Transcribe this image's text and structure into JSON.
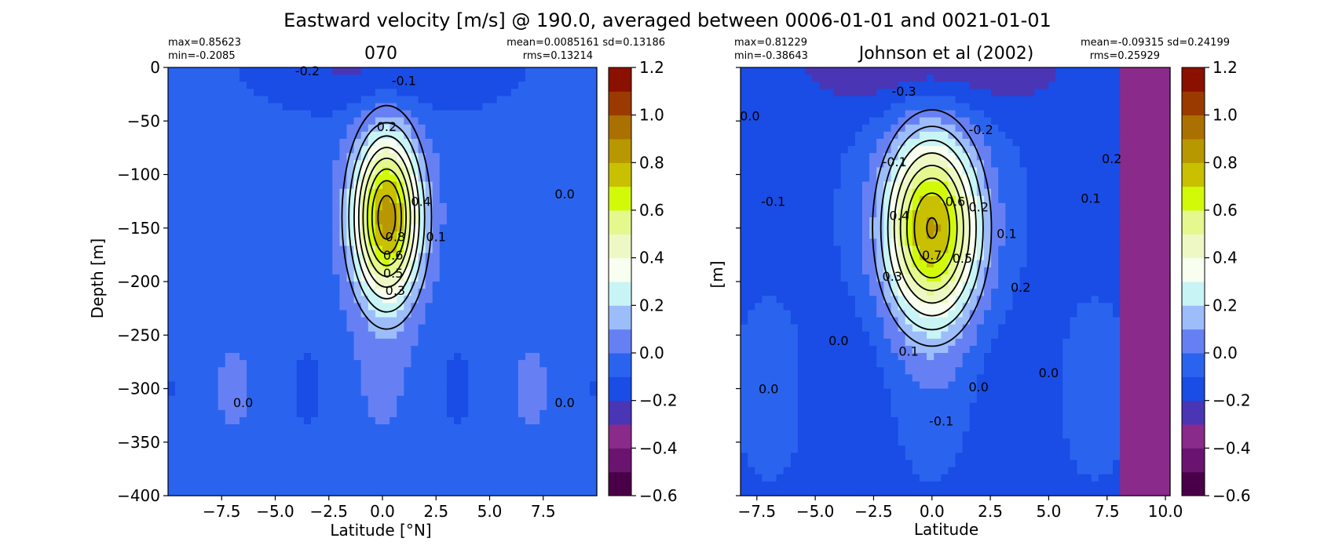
{
  "figure": {
    "suptitle": "Eastward velocity [m/s] @ 190.0, averaged between 0006-01-01 and 0021-01-01"
  },
  "colors": {
    "levels": [
      -0.6,
      -0.5,
      -0.4,
      -0.3,
      -0.2,
      -0.1,
      0.0,
      0.1,
      0.2,
      0.3,
      0.4,
      0.5,
      0.6,
      0.7,
      0.8,
      0.9,
      1.0,
      1.1,
      1.2
    ],
    "palette": [
      "#4a0048",
      "#6a1470",
      "#8a2a8a",
      "#4a35b4",
      "#1a4ce6",
      "#2a64ee",
      "#6680f4",
      "#9cbcfa",
      "#c8f4f6",
      "#f8fff0",
      "#eef8c4",
      "#e4f88e",
      "#d2fa08",
      "#c8c000",
      "#b89800",
      "#aa7000",
      "#9a3a00",
      "#8a1000",
      "#6a0000"
    ]
  },
  "chart_data": [
    {
      "type": "heatmap",
      "title": "070",
      "stats_left": [
        "max=0.85623",
        "min=-0.2085"
      ],
      "stats_right": [
        "mean=0.0085161 sd=0.13186",
        "rms=0.13214"
      ],
      "xlabel": "Latitude [°N]",
      "ylabel": "Depth [m]",
      "xlim": [
        -10,
        10
      ],
      "ylim": [
        -400,
        0
      ],
      "xticks": [
        -7.5,
        -5.0,
        -2.5,
        0.0,
        2.5,
        5.0,
        7.5
      ],
      "xtick_labels": [
        "−7.5",
        "−5.0",
        "−2.5",
        "0.0",
        "2.5",
        "5.0",
        "7.5"
      ],
      "yticks": [
        0,
        -50,
        -100,
        -150,
        -200,
        -250,
        -300,
        -350,
        -400
      ],
      "ytick_labels": [
        "0",
        "−50",
        "−100",
        "−150",
        "−200",
        "−250",
        "−300",
        "−350",
        "−400"
      ],
      "core": {
        "lat": 0.2,
        "depth": -140,
        "max": 0.86
      },
      "undercurrent_sd": {
        "lat": 1.1,
        "depth": 55
      },
      "background": -0.05,
      "contour_labels": [
        {
          "text": "-0.2",
          "lat": -3.5,
          "depth": -3
        },
        {
          "text": "-0.1",
          "lat": 1.0,
          "depth": -12
        },
        {
          "text": "0.2",
          "lat": 0.2,
          "depth": -55
        },
        {
          "text": "0.4",
          "lat": 1.8,
          "depth": -125
        },
        {
          "text": "0.1",
          "lat": 2.5,
          "depth": -158
        },
        {
          "text": "0.8",
          "lat": 0.6,
          "depth": -158
        },
        {
          "text": "0.6",
          "lat": 0.5,
          "depth": -175
        },
        {
          "text": "0.5",
          "lat": 0.5,
          "depth": -192
        },
        {
          "text": "0.3",
          "lat": 0.6,
          "depth": -208
        },
        {
          "text": "0.0",
          "lat": 8.5,
          "depth": -118
        },
        {
          "text": "0.0",
          "lat": -6.5,
          "depth": -313
        },
        {
          "text": "0.0",
          "lat": 8.5,
          "depth": -313
        }
      ]
    },
    {
      "type": "heatmap",
      "title": "Johnson et al (2002)",
      "stats_left": [
        "max=0.81229",
        "min=-0.38643"
      ],
      "stats_right": [
        "mean=-0.09315 sd=0.24199",
        "rms=0.25929"
      ],
      "xlabel": "Latitude",
      "ylabel": "[m]",
      "xlim": [
        -8.2,
        10.2
      ],
      "ylim": [
        -400,
        0
      ],
      "xticks": [
        -7.5,
        -5.0,
        -2.5,
        0.0,
        2.5,
        5.0,
        7.5,
        10.0
      ],
      "xtick_labels": [
        "−7.5",
        "−5.0",
        "−2.5",
        "0.0",
        "2.5",
        "5.0",
        "7.5",
        "10.0"
      ],
      "yticks": [
        0,
        -50,
        -100,
        -150,
        -200,
        -250,
        -300,
        -350,
        -400
      ],
      "core": {
        "lat": 0.0,
        "depth": -150,
        "max": 0.81
      },
      "undercurrent_sd": {
        "lat": 1.5,
        "depth": 65
      },
      "background": -0.12,
      "masked_from_lat": 8.0,
      "contour_labels": [
        {
          "text": "0.0",
          "lat": -7.8,
          "depth": -45
        },
        {
          "text": "-0.3",
          "lat": -1.2,
          "depth": -22
        },
        {
          "text": "-0.2",
          "lat": 2.1,
          "depth": -58
        },
        {
          "text": "-0.1",
          "lat": -1.6,
          "depth": -88
        },
        {
          "text": "0.2",
          "lat": 7.7,
          "depth": -85
        },
        {
          "text": "0.1",
          "lat": 6.8,
          "depth": -122
        },
        {
          "text": "-0.1",
          "lat": -6.8,
          "depth": -125
        },
        {
          "text": "0.6",
          "lat": 1.0,
          "depth": -125
        },
        {
          "text": "0.2",
          "lat": 2.0,
          "depth": -130
        },
        {
          "text": "0.4",
          "lat": -1.4,
          "depth": -138
        },
        {
          "text": "0.1",
          "lat": 3.2,
          "depth": -155
        },
        {
          "text": "0.7",
          "lat": 0.0,
          "depth": -175
        },
        {
          "text": "0.5",
          "lat": 1.3,
          "depth": -178
        },
        {
          "text": "0.3",
          "lat": -1.7,
          "depth": -195
        },
        {
          "text": "0.2",
          "lat": 3.8,
          "depth": -205
        },
        {
          "text": "0.0",
          "lat": -4.0,
          "depth": -255
        },
        {
          "text": "0.1",
          "lat": -1.0,
          "depth": -265
        },
        {
          "text": "0.0",
          "lat": 5.0,
          "depth": -285
        },
        {
          "text": "0.0",
          "lat": 2.0,
          "depth": -298
        },
        {
          "text": "0.0",
          "lat": -7.0,
          "depth": -300
        },
        {
          "text": "-0.1",
          "lat": 0.4,
          "depth": -330
        }
      ]
    }
  ],
  "colorbar": {
    "ticks": [
      1.2,
      1.0,
      0.8,
      0.6,
      0.4,
      0.2,
      0.0,
      -0.2,
      -0.4,
      -0.6
    ],
    "tick_labels": [
      "1.2",
      "1.0",
      "0.8",
      "0.6",
      "0.4",
      "0.2",
      "0.0",
      "−0.2",
      "−0.4",
      "−0.6"
    ]
  }
}
